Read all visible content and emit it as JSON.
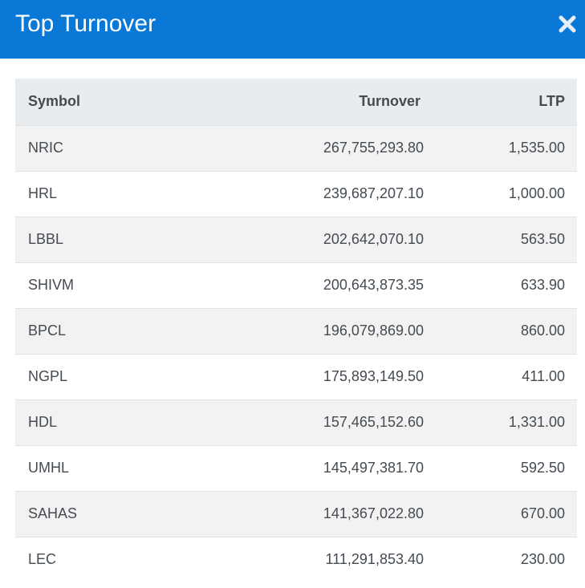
{
  "header": {
    "title": "Top Turnover",
    "close_icon": "close-icon",
    "background_color": "#0a78d6"
  },
  "table": {
    "columns": [
      "Symbol",
      "Turnover",
      "LTP"
    ],
    "rows": [
      {
        "symbol": "NRIC",
        "turnover": "267,755,293.80",
        "ltp": "1,535.00"
      },
      {
        "symbol": "HRL",
        "turnover": "239,687,207.10",
        "ltp": "1,000.00"
      },
      {
        "symbol": "LBBL",
        "turnover": "202,642,070.10",
        "ltp": "563.50"
      },
      {
        "symbol": "SHIVM",
        "turnover": "200,643,873.35",
        "ltp": "633.90"
      },
      {
        "symbol": "BPCL",
        "turnover": "196,079,869.00",
        "ltp": "860.00"
      },
      {
        "symbol": "NGPL",
        "turnover": "175,893,149.50",
        "ltp": "411.00"
      },
      {
        "symbol": "HDL",
        "turnover": "157,465,152.60",
        "ltp": "1,331.00"
      },
      {
        "symbol": "UMHL",
        "turnover": "145,497,381.70",
        "ltp": "592.50"
      },
      {
        "symbol": "SAHAS",
        "turnover": "141,367,022.80",
        "ltp": "670.00"
      },
      {
        "symbol": "LEC",
        "turnover": "111,291,853.40",
        "ltp": "230.00"
      }
    ]
  }
}
